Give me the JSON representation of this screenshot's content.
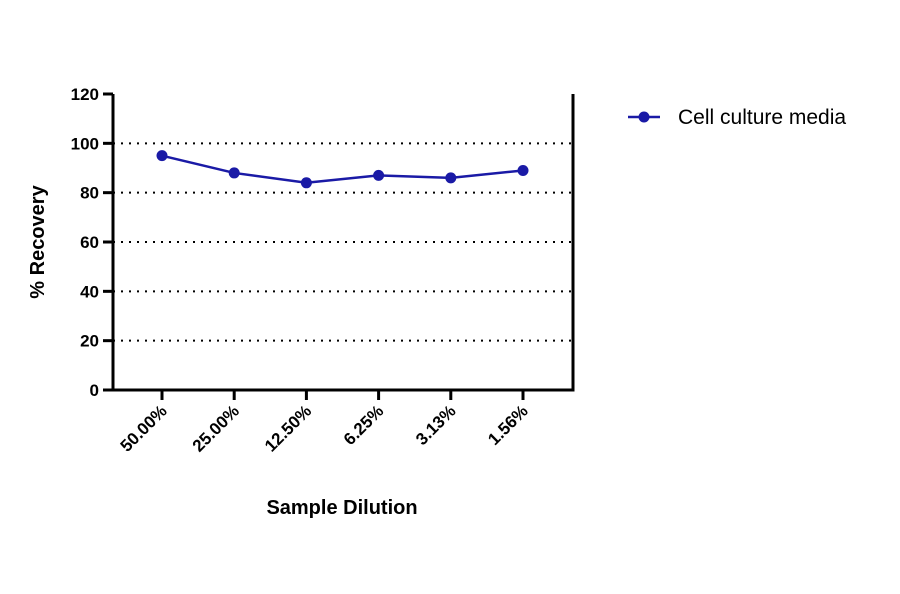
{
  "chart_data": {
    "type": "line",
    "x_label": "Sample Dilution",
    "y_label": "% Recovery",
    "categories": [
      "50.00%",
      "25.00%",
      "12.50%",
      "6.25%",
      "3.13%",
      "1.56%"
    ],
    "series": [
      {
        "name": "Cell culture media",
        "color": "#1a1aa6",
        "values": [
          95,
          88,
          84,
          87,
          86,
          89
        ]
      }
    ],
    "ylim": [
      0,
      120
    ],
    "yticks": [
      0,
      20,
      40,
      60,
      80,
      100,
      120
    ],
    "grid": true,
    "legend": "top-right"
  }
}
